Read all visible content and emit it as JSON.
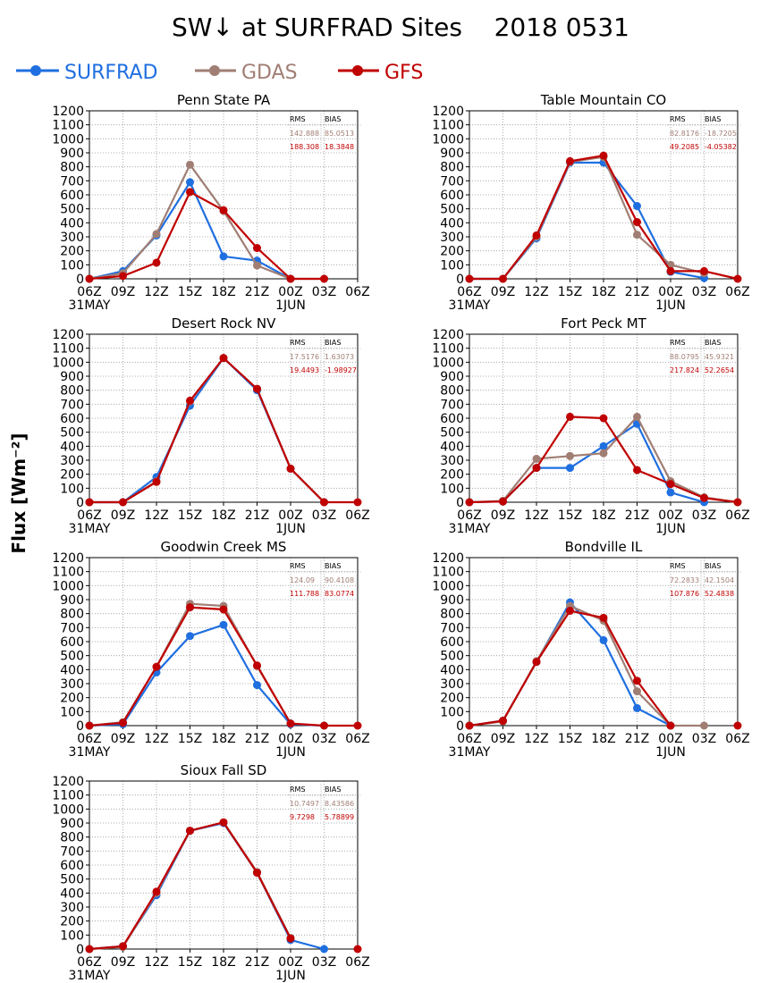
{
  "title": "SW↓ at SURFRAD Sites    2018 0531",
  "ylabel": "Flux [Wm⁻²]",
  "legend": [
    {
      "name": "SURFRAD",
      "color": "#1f6fe0"
    },
    {
      "name": "GDAS",
      "color": "#a07e74"
    },
    {
      "name": "GFS",
      "color": "#c00000"
    }
  ],
  "stats_headers": {
    "rms": "RMS",
    "bias": "BIAS"
  },
  "chart_data": [
    {
      "type": "line",
      "title": "Penn State PA",
      "x": [
        "06Z",
        "09Z",
        "12Z",
        "15Z",
        "18Z",
        "21Z",
        "00Z",
        "03Z",
        "06Z"
      ],
      "date_labels": [
        "31MAY",
        "1JUN"
      ],
      "ylim": [
        0,
        1200
      ],
      "yticks": [
        0,
        100,
        200,
        300,
        400,
        500,
        600,
        700,
        800,
        900,
        1000,
        1100,
        1200
      ],
      "grid": true,
      "series": [
        {
          "name": "SURFRAD",
          "values": [
            0,
            55,
            310,
            690,
            160,
            130,
            0,
            null,
            null
          ]
        },
        {
          "name": "GDAS",
          "values": [
            0,
            40,
            320,
            815,
            485,
            95,
            0,
            0,
            null
          ]
        },
        {
          "name": "GFS",
          "values": [
            0,
            20,
            115,
            620,
            490,
            220,
            0,
            0,
            null
          ]
        }
      ],
      "stats": [
        {
          "series": "GDAS",
          "rms": "142.888",
          "bias": "85.0513"
        },
        {
          "series": "GFS",
          "rms": "188.308",
          "bias": "18.3848"
        }
      ]
    },
    {
      "type": "line",
      "title": "Table Mountain CO",
      "x": [
        "06Z",
        "09Z",
        "12Z",
        "15Z",
        "18Z",
        "21Z",
        "00Z",
        "03Z",
        "06Z"
      ],
      "date_labels": [
        "31MAY",
        "1JUN"
      ],
      "ylim": [
        0,
        1200
      ],
      "yticks": [
        0,
        100,
        200,
        300,
        400,
        500,
        600,
        700,
        800,
        900,
        1000,
        1100,
        1200
      ],
      "grid": true,
      "series": [
        {
          "name": "SURFRAD",
          "values": [
            0,
            0,
            290,
            830,
            830,
            520,
            50,
            5,
            null
          ]
        },
        {
          "name": "GDAS",
          "values": [
            0,
            0,
            300,
            835,
            870,
            315,
            100,
            40,
            null
          ]
        },
        {
          "name": "GFS",
          "values": [
            0,
            0,
            310,
            840,
            880,
            405,
            55,
            55,
            0
          ]
        }
      ],
      "stats": [
        {
          "series": "GDAS",
          "rms": "82.8176",
          "bias": "-18.7205"
        },
        {
          "series": "GFS",
          "rms": "49.2085",
          "bias": "-4.05382"
        }
      ]
    },
    {
      "type": "line",
      "title": "Desert Rock NV",
      "x": [
        "06Z",
        "09Z",
        "12Z",
        "15Z",
        "18Z",
        "21Z",
        "00Z",
        "03Z",
        "06Z"
      ],
      "date_labels": [
        "31MAY",
        "1JUN"
      ],
      "ylim": [
        0,
        1200
      ],
      "yticks": [
        0,
        100,
        200,
        300,
        400,
        500,
        600,
        700,
        800,
        900,
        1000,
        1100,
        1200
      ],
      "grid": true,
      "series": [
        {
          "name": "SURFRAD",
          "values": [
            0,
            0,
            180,
            690,
            1030,
            800,
            240,
            0,
            null
          ]
        },
        {
          "name": "GDAS",
          "values": [
            0,
            0,
            150,
            720,
            1030,
            810,
            240,
            0,
            null
          ]
        },
        {
          "name": "GFS",
          "values": [
            0,
            0,
            145,
            725,
            1030,
            810,
            240,
            0,
            0
          ]
        }
      ],
      "stats": [
        {
          "series": "GDAS",
          "rms": "17.5176",
          "bias": "1.63073"
        },
        {
          "series": "GFS",
          "rms": "19.4493",
          "bias": "-1.98927"
        }
      ]
    },
    {
      "type": "line",
      "title": "Fort Peck MT",
      "x": [
        "06Z",
        "09Z",
        "12Z",
        "15Z",
        "18Z",
        "21Z",
        "00Z",
        "03Z",
        "06Z"
      ],
      "date_labels": [
        "31MAY",
        "1JUN"
      ],
      "ylim": [
        0,
        1200
      ],
      "yticks": [
        0,
        100,
        200,
        300,
        400,
        500,
        600,
        700,
        800,
        900,
        1000,
        1100,
        1200
      ],
      "grid": true,
      "series": [
        {
          "name": "SURFRAD",
          "values": [
            0,
            5,
            245,
            245,
            400,
            560,
            70,
            0,
            null
          ]
        },
        {
          "name": "GDAS",
          "values": [
            0,
            10,
            310,
            330,
            350,
            610,
            150,
            35,
            0
          ]
        },
        {
          "name": "GFS",
          "values": [
            0,
            5,
            245,
            610,
            600,
            230,
            130,
            30,
            0
          ]
        }
      ],
      "stats": [
        {
          "series": "GDAS",
          "rms": "88.0795",
          "bias": "45.9321"
        },
        {
          "series": "GFS",
          "rms": "217.824",
          "bias": "52.2654"
        }
      ]
    },
    {
      "type": "line",
      "title": "Goodwin Creek MS",
      "x": [
        "06Z",
        "09Z",
        "12Z",
        "15Z",
        "18Z",
        "21Z",
        "00Z",
        "03Z",
        "06Z"
      ],
      "date_labels": [
        "31MAY",
        "1JUN"
      ],
      "ylim": [
        0,
        1200
      ],
      "yticks": [
        0,
        100,
        200,
        300,
        400,
        500,
        600,
        700,
        800,
        900,
        1000,
        1100,
        1200
      ],
      "grid": true,
      "series": [
        {
          "name": "SURFRAD",
          "values": [
            0,
            10,
            380,
            640,
            720,
            290,
            10,
            0,
            null
          ]
        },
        {
          "name": "GDAS",
          "values": [
            0,
            25,
            420,
            870,
            855,
            425,
            15,
            null,
            null
          ]
        },
        {
          "name": "GFS",
          "values": [
            0,
            20,
            420,
            845,
            830,
            430,
            15,
            0,
            0
          ]
        }
      ],
      "stats": [
        {
          "series": "GDAS",
          "rms": "124.09",
          "bias": "90.4108"
        },
        {
          "series": "GFS",
          "rms": "111.788",
          "bias": "83.0774"
        }
      ]
    },
    {
      "type": "line",
      "title": "Bondville IL",
      "x": [
        "06Z",
        "09Z",
        "12Z",
        "15Z",
        "18Z",
        "21Z",
        "00Z",
        "03Z",
        "06Z"
      ],
      "date_labels": [
        "31MAY",
        "1JUN"
      ],
      "ylim": [
        0,
        1200
      ],
      "yticks": [
        0,
        100,
        200,
        300,
        400,
        500,
        600,
        700,
        800,
        900,
        1000,
        1100,
        1200
      ],
      "grid": true,
      "series": [
        {
          "name": "SURFRAD",
          "values": [
            0,
            35,
            455,
            880,
            610,
            125,
            0,
            null,
            null
          ]
        },
        {
          "name": "GDAS",
          "values": [
            0,
            30,
            460,
            855,
            750,
            245,
            0,
            0,
            null
          ]
        },
        {
          "name": "GFS",
          "values": [
            0,
            35,
            455,
            820,
            770,
            320,
            0,
            null,
            0
          ]
        }
      ],
      "stats": [
        {
          "series": "GDAS",
          "rms": "72.2833",
          "bias": "42.1504"
        },
        {
          "series": "GFS",
          "rms": "107.876",
          "bias": "52.4838"
        }
      ]
    },
    {
      "type": "line",
      "title": "Sioux Fall SD",
      "x": [
        "06Z",
        "09Z",
        "12Z",
        "15Z",
        "18Z",
        "21Z",
        "00Z",
        "03Z",
        "06Z"
      ],
      "date_labels": [
        "31MAY",
        "1JUN"
      ],
      "ylim": [
        0,
        1200
      ],
      "yticks": [
        0,
        100,
        200,
        300,
        400,
        500,
        600,
        700,
        800,
        900,
        1000,
        1100,
        1200
      ],
      "grid": true,
      "series": [
        {
          "name": "SURFRAD",
          "values": [
            0,
            20,
            385,
            845,
            900,
            545,
            65,
            0,
            null
          ]
        },
        {
          "name": "GDAS",
          "values": [
            0,
            15,
            400,
            845,
            905,
            550,
            80,
            null,
            null
          ]
        },
        {
          "name": "GFS",
          "values": [
            0,
            20,
            410,
            845,
            905,
            545,
            75,
            null,
            0
          ]
        }
      ],
      "stats": [
        {
          "series": "GDAS",
          "rms": "10.7497",
          "bias": "8.43586"
        },
        {
          "series": "GFS",
          "rms": "9.7298",
          "bias": "5.78899"
        }
      ]
    }
  ]
}
